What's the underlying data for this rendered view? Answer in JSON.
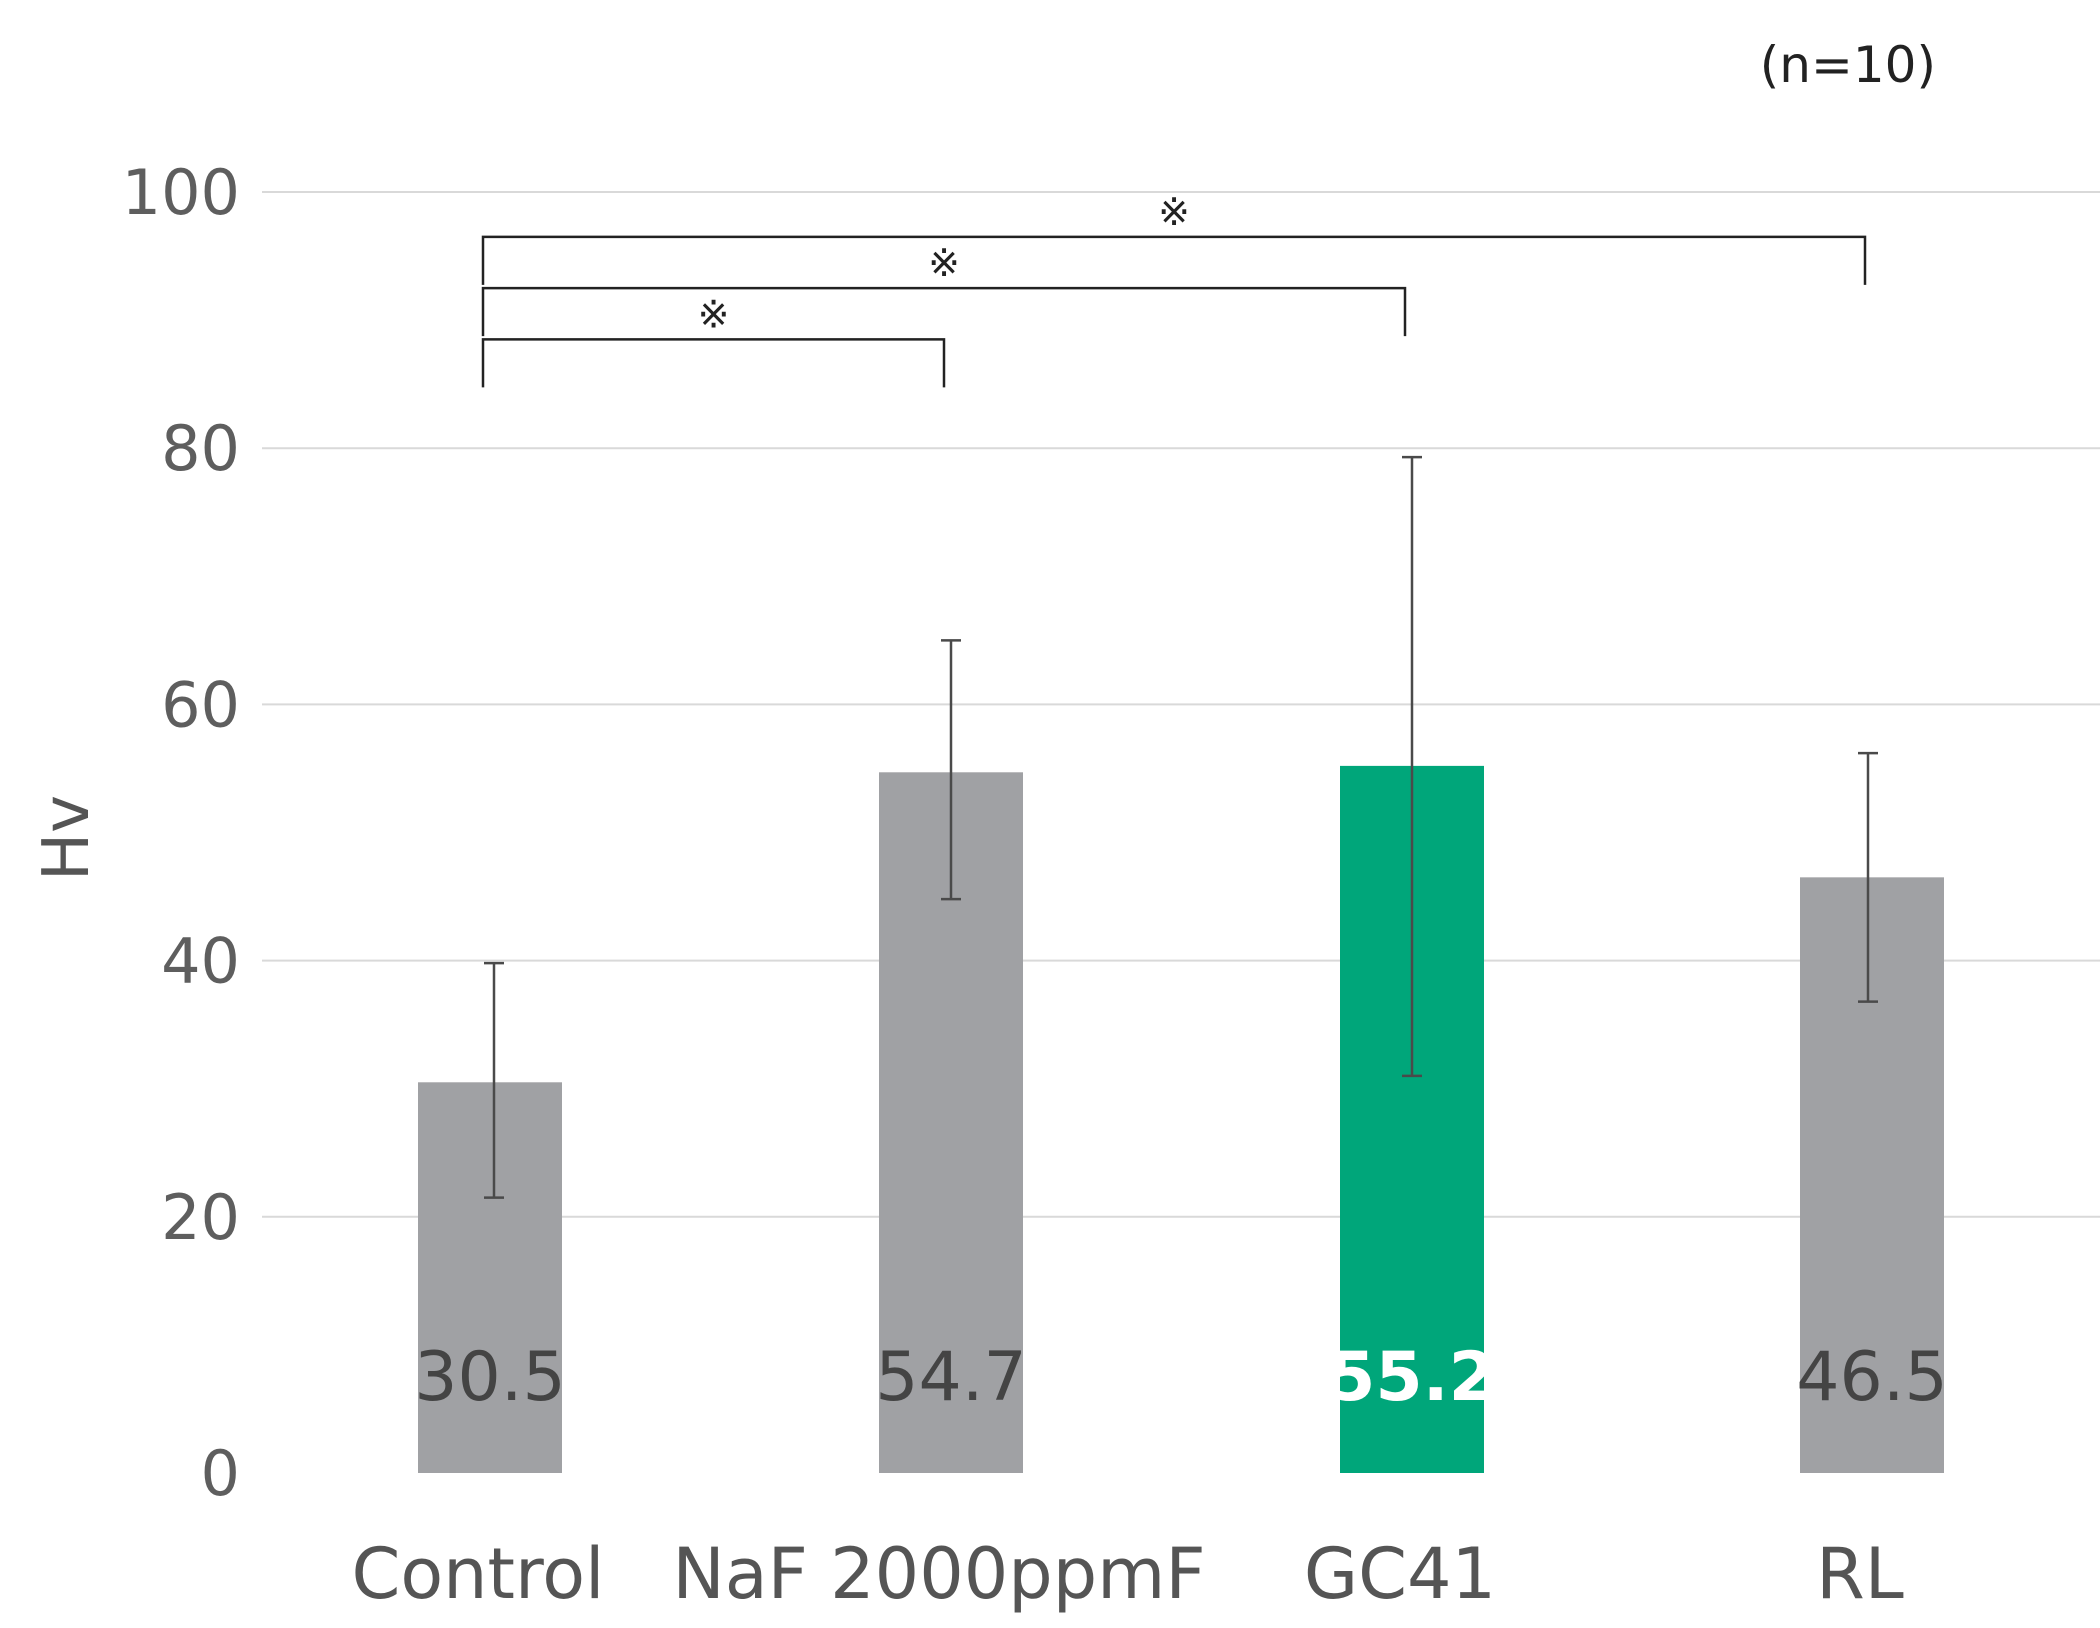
{
  "chart_data": {
    "type": "bar",
    "title": "",
    "note": "(n=10)",
    "xlabel": "",
    "ylabel": "Hv",
    "ylim": [
      0,
      100
    ],
    "yticks": [
      0,
      20,
      40,
      60,
      80,
      100
    ],
    "grid": true,
    "categories": [
      "Control",
      "NaF 2000ppmF",
      "GC41",
      "RL"
    ],
    "values": [
      30.5,
      54.7,
      55.2,
      46.5
    ],
    "value_labels": [
      "30.5",
      "54.7",
      "55.2",
      "46.5"
    ],
    "error_bars": [
      {
        "low": 21.5,
        "high": 39.8
      },
      {
        "low": 44.8,
        "high": 65.0
      },
      {
        "low": 31.0,
        "high": 79.3
      },
      {
        "low": 36.8,
        "high": 56.2
      }
    ],
    "bar_colors": [
      "#a0a1a4",
      "#a0a1a4",
      "#00a67a",
      "#a0a1a4"
    ],
    "value_label_colors": [
      "#444444",
      "#444444",
      "#ffffff",
      "#444444"
    ],
    "significance": [
      {
        "from": 0,
        "to": 1,
        "y": 88.5,
        "symbol": "※"
      },
      {
        "from": 0,
        "to": 2,
        "y": 92.5,
        "symbol": "※"
      },
      {
        "from": 0,
        "to": 3,
        "y": 96.5,
        "symbol": "※"
      }
    ],
    "colors": {
      "grid": "#d9d9d9",
      "error": "#4a4a4a",
      "bracket": "#222222"
    }
  }
}
